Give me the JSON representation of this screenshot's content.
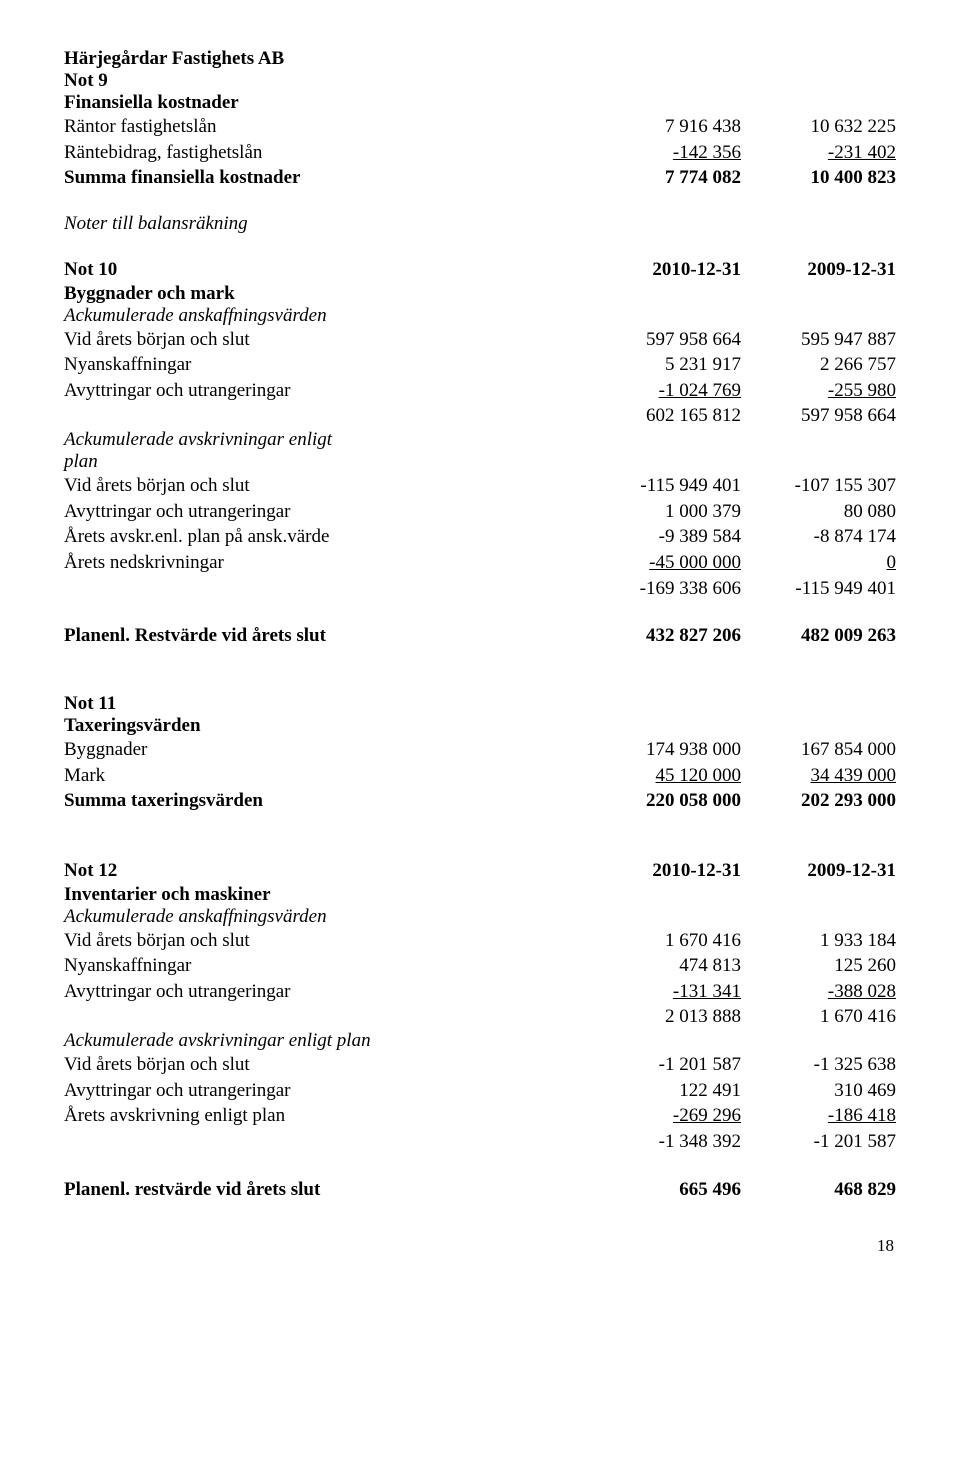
{
  "header": {
    "company": "Härjegårdar Fastighets AB"
  },
  "not9": {
    "title": "Not 9",
    "heading": "Finansiella kostnader",
    "rows": {
      "rantor": {
        "label": "Räntor fastighetslån",
        "c1": "7 916 438",
        "c2": "10 632 225"
      },
      "rantebidrag": {
        "label": "Räntebidrag, fastighetslån",
        "c1": "-142 356",
        "c2": "-231 402"
      },
      "summa": {
        "label": "Summa finansiella kostnader",
        "c1": "7 774 082",
        "c2": "10 400 823"
      }
    }
  },
  "noter_heading": "Noter till balansräkning",
  "not10": {
    "title": "Not 10",
    "c1_head": "2010-12-31",
    "c2_head": "2009-12-31",
    "sec1_label": "Byggnader och mark",
    "ack_ansk": "Ackumulerade anskaffningsvärden",
    "rows": {
      "vid_borjan1": {
        "label": "Vid årets början och slut",
        "c1": "597 958 664",
        "c2": "595 947 887"
      },
      "nyansk": {
        "label": "Nyanskaffningar",
        "c1": "5 231 917",
        "c2": "2 266 757"
      },
      "avyttr1": {
        "label": "Avyttringar och utrangeringar",
        "c1": "-1 024 769",
        "c2": "-255 980"
      },
      "sum1": {
        "label": "",
        "c1": "602 165 812",
        "c2": "597 958 664"
      },
      "ack_avskr_l1": "Ackumulerade avskrivningar enligt",
      "ack_avskr_l2": "plan",
      "vid_borjan2": {
        "label": "Vid årets början och slut",
        "c1": "-115 949 401",
        "c2": "-107 155 307"
      },
      "avyttr2": {
        "label": "Avyttringar och utrangeringar",
        "c1": "1 000 379",
        "c2": "80 080"
      },
      "arets_avskr": {
        "label": "Årets avskr.enl. plan på ansk.värde",
        "c1": "-9 389 584",
        "c2": "-8 874 174"
      },
      "arets_nedskr": {
        "label": "Årets nedskrivningar",
        "c1": "-45 000 000",
        "c2": "0"
      },
      "sum2": {
        "label": "",
        "c1": "-169 338 606",
        "c2": "-115 949 401"
      },
      "planenl": {
        "label": "Planenl. Restvärde vid årets slut",
        "c1": "432 827 206",
        "c2": "482 009 263"
      }
    }
  },
  "not11": {
    "title": "Not 11",
    "heading": "Taxeringsvärden",
    "rows": {
      "byggnader": {
        "label": "Byggnader",
        "c1": "174 938 000",
        "c2": "167 854 000"
      },
      "mark": {
        "label": "Mark",
        "c1": "45 120 000",
        "c2": "34 439 000"
      },
      "summa": {
        "label": "Summa taxeringsvärden",
        "c1": "220 058 000",
        "c2": "202 293 000"
      }
    }
  },
  "not12": {
    "title": "Not 12",
    "c1_head": "2010-12-31",
    "c2_head": "2009-12-31",
    "heading": "Inventarier och maskiner",
    "ack_ansk": "Ackumulerade anskaffningsvärden",
    "rows": {
      "vid_borjan1": {
        "label": "Vid årets början och slut",
        "c1": "1 670 416",
        "c2": "1 933 184"
      },
      "nyansk": {
        "label": "Nyanskaffningar",
        "c1": "474 813",
        "c2": "125 260"
      },
      "avyttr1": {
        "label": "Avyttringar och utrangeringar",
        "c1": "-131 341",
        "c2": "-388 028"
      },
      "sum1": {
        "label": "",
        "c1": "2 013 888",
        "c2": "1 670 416"
      },
      "ack_avskr": "Ackumulerade avskrivningar enligt plan",
      "vid_borjan2": {
        "label": "Vid årets början och slut",
        "c1": "-1 201 587",
        "c2": "-1 325 638"
      },
      "avyttr2": {
        "label": "Avyttringar och utrangeringar",
        "c1": "122 491",
        "c2": "310 469"
      },
      "arets_avskr": {
        "label": "Årets avskrivning enligt plan",
        "c1": "-269 296",
        "c2": "-186 418"
      },
      "sum2": {
        "label": "",
        "c1": "-1 348 392",
        "c2": "-1 201 587"
      },
      "planenl": {
        "label": "Planenl. restvärde vid årets slut",
        "c1": "665 496",
        "c2": "468 829"
      }
    }
  },
  "pagenum": "18"
}
